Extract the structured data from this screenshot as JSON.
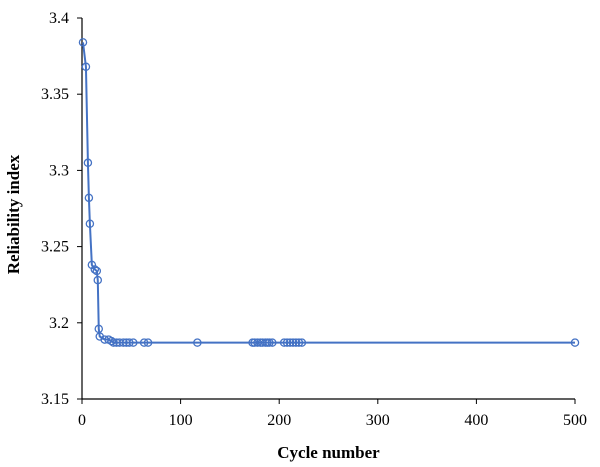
{
  "chart_data": {
    "type": "line",
    "title": "",
    "xlabel": "Cycle number",
    "ylabel": "Reliability index",
    "xlim": [
      0,
      500
    ],
    "ylim": [
      3.15,
      3.4
    ],
    "x_ticks": [
      0,
      100,
      200,
      300,
      400,
      500
    ],
    "y_ticks": [
      3.15,
      3.2,
      3.25,
      3.3,
      3.35,
      3.4
    ],
    "x_tick_labels": [
      "0",
      "100",
      "200",
      "300",
      "400",
      "500"
    ],
    "y_tick_labels": [
      "3.15",
      "3.2",
      "3.25",
      "3.3",
      "3.35",
      "3.4"
    ],
    "grid": false,
    "legend": "none",
    "series_color": "#4472C4",
    "series": [
      {
        "x": [
          1,
          4,
          6,
          7,
          8,
          10,
          13,
          15,
          16,
          17,
          18,
          23,
          27,
          30,
          32,
          35,
          38,
          42,
          45,
          48,
          52,
          63,
          67,
          117,
          173,
          175,
          178,
          181,
          183,
          186,
          188,
          190,
          193,
          205,
          208,
          211,
          214,
          217,
          220,
          223,
          500
        ],
        "y": [
          3.384,
          3.368,
          3.305,
          3.282,
          3.265,
          3.238,
          3.235,
          3.234,
          3.228,
          3.196,
          3.191,
          3.189,
          3.189,
          3.188,
          3.187,
          3.187,
          3.187,
          3.187,
          3.187,
          3.187,
          3.187,
          3.187,
          3.187,
          3.187,
          3.187,
          3.187,
          3.187,
          3.187,
          3.187,
          3.187,
          3.187,
          3.187,
          3.187,
          3.187,
          3.187,
          3.187,
          3.187,
          3.187,
          3.187,
          3.187,
          3.187
        ]
      }
    ]
  }
}
